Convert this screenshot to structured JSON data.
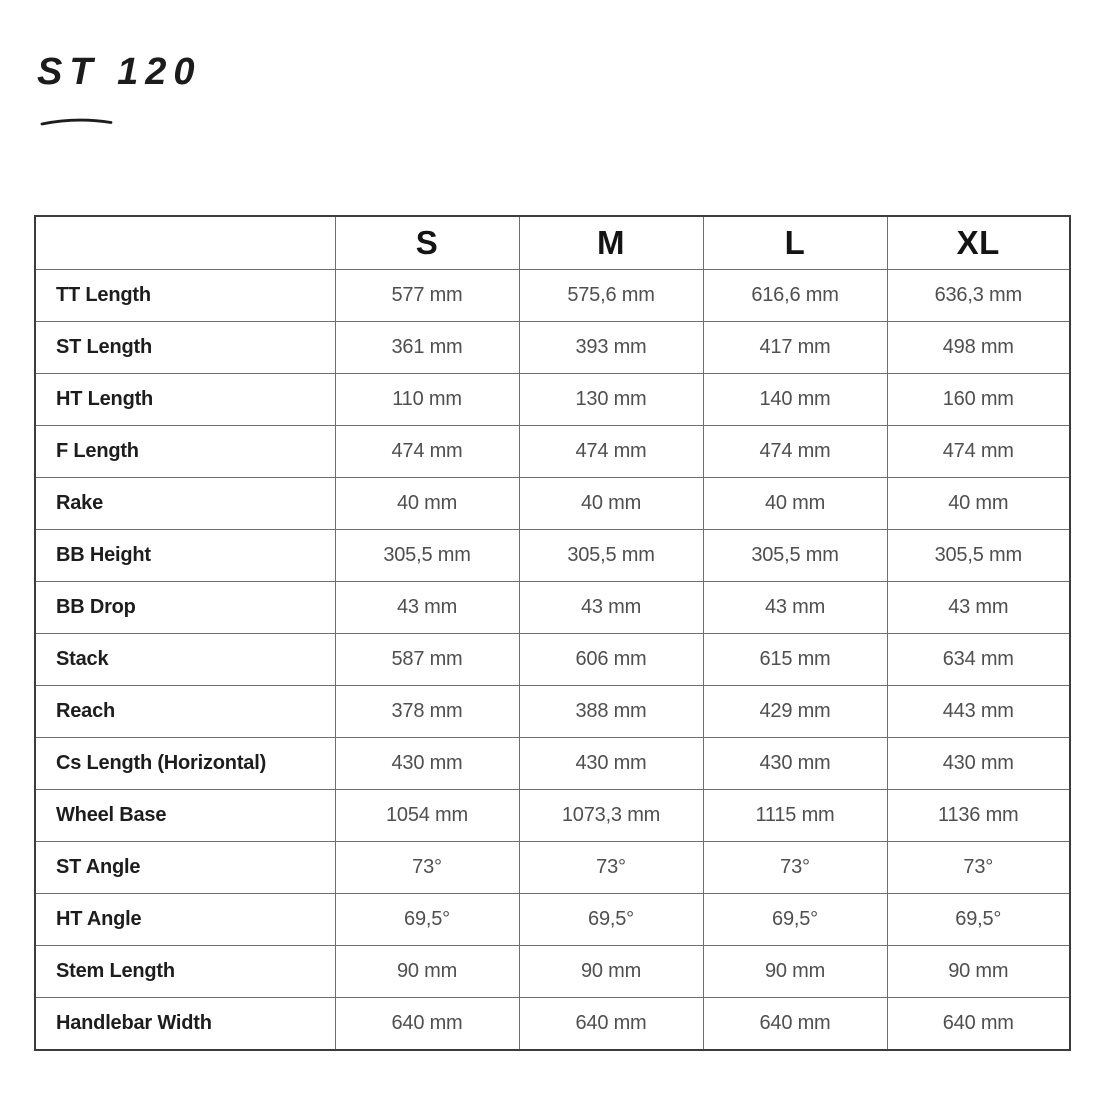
{
  "page": {
    "title": "ST 120"
  },
  "table": {
    "columns": [
      "S",
      "M",
      "L",
      "XL"
    ],
    "rows": [
      {
        "label": "TT Length",
        "values": [
          "577 mm",
          "575,6 mm",
          "616,6 mm",
          "636,3 mm"
        ]
      },
      {
        "label": "ST Length",
        "values": [
          "361 mm",
          "393 mm",
          "417 mm",
          "498 mm"
        ]
      },
      {
        "label": "HT Length",
        "values": [
          "110 mm",
          "130 mm",
          "140 mm",
          "160 mm"
        ]
      },
      {
        "label": "F Length",
        "values": [
          "474 mm",
          "474 mm",
          "474 mm",
          "474 mm"
        ]
      },
      {
        "label": "Rake",
        "values": [
          "40 mm",
          "40 mm",
          "40 mm",
          "40 mm"
        ]
      },
      {
        "label": "BB Height",
        "values": [
          "305,5 mm",
          "305,5 mm",
          "305,5 mm",
          "305,5 mm"
        ]
      },
      {
        "label": "BB Drop",
        "values": [
          "43 mm",
          "43 mm",
          "43 mm",
          "43 mm"
        ]
      },
      {
        "label": "Stack",
        "values": [
          "587 mm",
          "606 mm",
          "615 mm",
          "634 mm"
        ]
      },
      {
        "label": "Reach",
        "values": [
          "378 mm",
          "388 mm",
          "429 mm",
          "443 mm"
        ]
      },
      {
        "label": "Cs Length (Horizontal)",
        "values": [
          "430 mm",
          "430 mm",
          "430 mm",
          "430 mm"
        ]
      },
      {
        "label": "Wheel Base",
        "values": [
          "1054 mm",
          "1073,3 mm",
          "1115 mm",
          "1136 mm"
        ]
      },
      {
        "label": "ST Angle",
        "values": [
          "73°",
          "73°",
          "73°",
          "73°"
        ]
      },
      {
        "label": "HT Angle",
        "values": [
          "69,5°",
          "69,5°",
          "69,5°",
          "69,5°"
        ]
      },
      {
        "label": "Stem Length",
        "values": [
          "90 mm",
          "90 mm",
          "90 mm",
          "90 mm"
        ]
      },
      {
        "label": "Handlebar Width",
        "values": [
          "640 mm",
          "640 mm",
          "640 mm",
          "640 mm"
        ]
      }
    ]
  },
  "colors": {
    "background": "#ffffff",
    "title_text": "#1c1c1c",
    "label_text": "#1d1d1d",
    "value_text": "#4f4f4f",
    "border_outer": "#3c3c3c",
    "border_inner": "#6e6e6e"
  }
}
